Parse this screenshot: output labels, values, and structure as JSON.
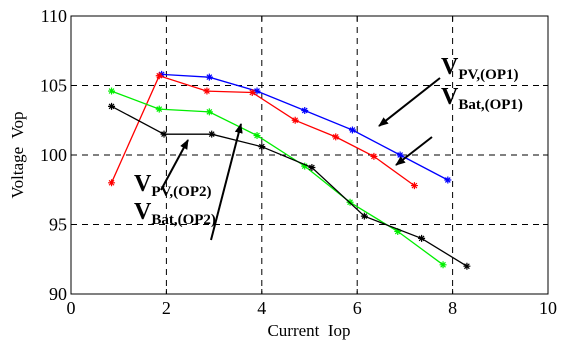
{
  "chart_data": {
    "type": "line",
    "title": "",
    "xlabel": "Current  Iop",
    "ylabel": "Voltage  Vop",
    "xlim": [
      0,
      10
    ],
    "ylim": [
      90,
      110
    ],
    "xticks": [
      "0",
      "2",
      "4",
      "6",
      "8",
      "10"
    ],
    "yticks": [
      "90",
      "95",
      "100",
      "105",
      "110"
    ],
    "grid": true,
    "series": [
      {
        "color": "#0000ff",
        "x": [
          1.9,
          2.9,
          3.9,
          4.9,
          5.9,
          6.9,
          7.9
        ],
        "y": [
          105.8,
          105.6,
          104.6,
          103.2,
          101.8,
          100.0,
          98.2
        ]
      },
      {
        "color": "#ff0000",
        "x": [
          0.85,
          1.85,
          2.85,
          3.8,
          4.7,
          5.55,
          6.35,
          7.2
        ],
        "y": [
          98.0,
          105.7,
          104.6,
          104.5,
          102.5,
          101.3,
          99.9,
          97.8
        ]
      },
      {
        "color": "#00ee00",
        "x": [
          0.85,
          1.85,
          2.9,
          3.9,
          4.9,
          5.85,
          6.85,
          7.8
        ],
        "y": [
          104.6,
          103.3,
          103.1,
          101.4,
          99.2,
          96.6,
          94.5,
          92.1
        ]
      },
      {
        "color": "#000000",
        "x": [
          0.85,
          1.95,
          2.95,
          4.0,
          5.05,
          6.15,
          7.35,
          8.3
        ],
        "y": [
          103.5,
          101.5,
          101.5,
          100.6,
          99.1,
          95.6,
          94.0,
          92.0
        ]
      }
    ],
    "annotations": [
      {
        "main": "V",
        "sub": "PV,(OP1)"
      },
      {
        "main": "V",
        "sub": "Bat,(OP1)"
      },
      {
        "main": "V",
        "sub": "PV,(OP2)"
      },
      {
        "main": "V",
        "sub": "Bat,(OP2)"
      }
    ]
  }
}
